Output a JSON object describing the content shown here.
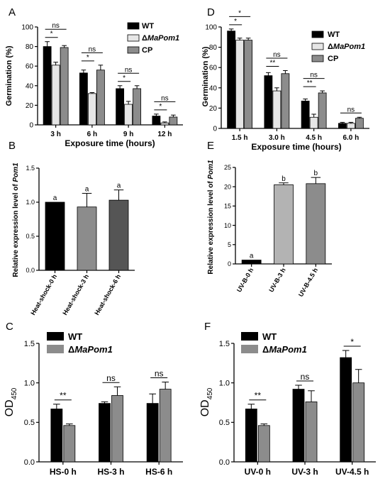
{
  "colors": {
    "black": "#000000",
    "light_gray": "#e6e6e6",
    "mid_gray": "#8c8c8c",
    "dark_gray": "#555555",
    "gray": "#b3b3b3"
  },
  "chart_data": [
    {
      "panel": "A",
      "type": "bar",
      "ylabel": "Germination (%)",
      "xlabel": "Exposure time (hours)",
      "ylim": [
        0,
        100
      ],
      "yticks": [
        "0",
        "20",
        "40",
        "60",
        "80",
        "100"
      ],
      "categories": [
        "3 h",
        "6 h",
        "9 h",
        "12 h"
      ],
      "legend_position": "top-right",
      "series": [
        {
          "name": "WT",
          "values": [
            80,
            53,
            37,
            9
          ],
          "errors": [
            5,
            3,
            3,
            2
          ]
        },
        {
          "name": "ΔMaPom1",
          "values": [
            61,
            32,
            21,
            2
          ],
          "errors": [
            3,
            1,
            3,
            1
          ]
        },
        {
          "name": "CP",
          "values": [
            79,
            56,
            37,
            8
          ],
          "errors": [
            2,
            5,
            3,
            2
          ]
        }
      ],
      "annotations": [
        {
          "text": "*",
          "group": 0,
          "pair": [
            0,
            1
          ]
        },
        {
          "text": "ns",
          "group": 0,
          "pair": [
            0,
            2
          ]
        },
        {
          "text": "*",
          "group": 1,
          "pair": [
            0,
            1
          ]
        },
        {
          "text": "ns",
          "group": 1,
          "pair": [
            0,
            2
          ]
        },
        {
          "text": "*",
          "group": 2,
          "pair": [
            0,
            1
          ]
        },
        {
          "text": "ns",
          "group": 2,
          "pair": [
            0,
            2
          ]
        },
        {
          "text": "*",
          "group": 3,
          "pair": [
            0,
            1
          ]
        },
        {
          "text": "ns",
          "group": 3,
          "pair": [
            0,
            2
          ]
        }
      ]
    },
    {
      "panel": "D",
      "type": "bar",
      "ylabel": "Germination (%)",
      "xlabel": "Exposure time (hours)",
      "ylim": [
        0,
        100
      ],
      "yticks": [
        "0",
        "20",
        "40",
        "60",
        "80",
        "100"
      ],
      "categories": [
        "1.5 h",
        "3.0 h",
        "4.5 h",
        "6.0 h"
      ],
      "legend_position": "top-right",
      "series": [
        {
          "name": "WT",
          "values": [
            96,
            52,
            27,
            5
          ],
          "errors": [
            2,
            3,
            2,
            1
          ]
        },
        {
          "name": "ΔMaPom1",
          "values": [
            87,
            37,
            11,
            5
          ],
          "errors": [
            2,
            3,
            3,
            1
          ]
        },
        {
          "name": "CP",
          "values": [
            87,
            54,
            35,
            10
          ],
          "errors": [
            2,
            3,
            2,
            1
          ]
        }
      ],
      "annotations": [
        {
          "text": "*",
          "group": 0,
          "pair": [
            0,
            1
          ]
        },
        {
          "text": "*",
          "group": 0,
          "pair": [
            0,
            2
          ]
        },
        {
          "text": "**",
          "group": 1,
          "pair": [
            0,
            1
          ]
        },
        {
          "text": "ns",
          "group": 1,
          "pair": [
            0,
            2
          ]
        },
        {
          "text": "**",
          "group": 2,
          "pair": [
            0,
            1
          ]
        },
        {
          "text": "ns",
          "group": 2,
          "pair": [
            0,
            2
          ]
        },
        {
          "text": "ns",
          "group": 3,
          "pair": [
            0,
            2
          ]
        }
      ]
    },
    {
      "panel": "B",
      "type": "bar",
      "ylabel": "Relative expression level of Pom1",
      "ylim": [
        0,
        1.5
      ],
      "yticks": [
        "0.0",
        "0.5",
        "1.0",
        "1.5"
      ],
      "categories": [
        "Heat-shock-0 h",
        "Heat-shock-3 h",
        "Heat-shock-6 h"
      ],
      "values": [
        1.0,
        0.93,
        1.03
      ],
      "errors": [
        0,
        0.2,
        0.15
      ],
      "letters": [
        "a",
        "a",
        "a"
      ]
    },
    {
      "panel": "E",
      "type": "bar",
      "ylabel": "Relative expression level of Pom1",
      "ylim": [
        0,
        25
      ],
      "yticks": [
        "0",
        "5",
        "10",
        "15",
        "20",
        "25"
      ],
      "categories": [
        "UV-B-0 h",
        "UV-B-3 h",
        "UV-B-4.5 h"
      ],
      "values": [
        1.0,
        20.5,
        20.8
      ],
      "errors": [
        0,
        0.5,
        1.6
      ],
      "letters": [
        "a",
        "b",
        "b"
      ]
    },
    {
      "panel": "C",
      "type": "bar",
      "ylabel": "OD450",
      "ylim": [
        0,
        1.5
      ],
      "yticks": [
        "0.0",
        "0.5",
        "1.0",
        "1.5"
      ],
      "categories": [
        "HS-0 h",
        "HS-3 h",
        "HS-6 h"
      ],
      "legend_position": "top-left",
      "series": [
        {
          "name": "WT",
          "values": [
            0.67,
            0.74,
            0.74
          ],
          "errors": [
            0.06,
            0.02,
            0.12
          ]
        },
        {
          "name": "ΔMaPom1",
          "values": [
            0.46,
            0.84,
            0.92
          ],
          "errors": [
            0.02,
            0.11,
            0.09
          ]
        }
      ],
      "annotations": [
        {
          "text": "**",
          "group": 0
        },
        {
          "text": "ns",
          "group": 1
        },
        {
          "text": "ns",
          "group": 2
        }
      ]
    },
    {
      "panel": "F",
      "type": "bar",
      "ylabel": "OD450",
      "ylim": [
        0,
        1.5
      ],
      "yticks": [
        "0.0",
        "0.5",
        "1.0",
        "1.5"
      ],
      "categories": [
        "UV-0 h",
        "UV-3 h",
        "UV-4.5 h"
      ],
      "legend_position": "top-left",
      "series": [
        {
          "name": "WT",
          "values": [
            0.67,
            0.92,
            1.32
          ],
          "errors": [
            0.06,
            0.05,
            0.09
          ]
        },
        {
          "name": "ΔMaPom1",
          "values": [
            0.46,
            0.76,
            1.0
          ],
          "errors": [
            0.02,
            0.14,
            0.17
          ]
        }
      ],
      "annotations": [
        {
          "text": "**",
          "group": 0
        },
        {
          "text": "ns",
          "group": 1
        },
        {
          "text": "*",
          "group": 2
        }
      ]
    }
  ]
}
